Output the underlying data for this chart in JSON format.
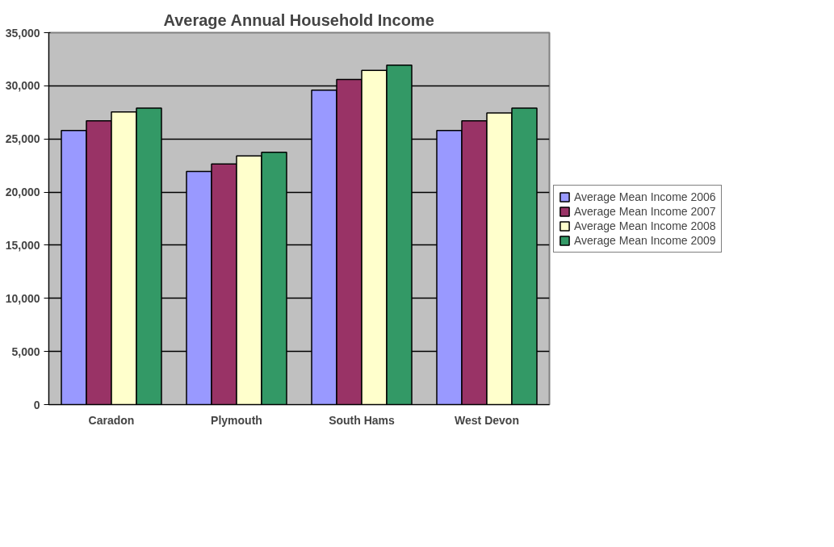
{
  "chart_data": {
    "type": "bar",
    "title": "Average Annual Household Income",
    "categories": [
      "Caradon",
      "Plymouth",
      "South Hams",
      "West Devon"
    ],
    "series": [
      {
        "name": "Average Mean Income 2006",
        "color": "#9999ff",
        "values": [
          25800,
          21950,
          29600,
          25800
        ]
      },
      {
        "name": "Average Mean Income 2007",
        "color": "#993366",
        "values": [
          26700,
          22650,
          30600,
          26700
        ]
      },
      {
        "name": "Average Mean Income 2008",
        "color": "#ffffcc",
        "values": [
          27550,
          23400,
          31450,
          27450
        ]
      },
      {
        "name": "Average Mean Income 2009",
        "color": "#339966",
        "values": [
          27900,
          23750,
          31950,
          27900
        ]
      }
    ],
    "ylim": [
      0,
      35000
    ],
    "yticks": [
      {
        "value": 0,
        "label": "0"
      },
      {
        "value": 5000,
        "label": "5,000"
      },
      {
        "value": 10000,
        "label": "10,000"
      },
      {
        "value": 15000,
        "label": "15,000"
      },
      {
        "value": 20000,
        "label": "20,000"
      },
      {
        "value": 25000,
        "label": "25,000"
      },
      {
        "value": 30000,
        "label": "30,000"
      },
      {
        "value": 35000,
        "label": "35,000"
      }
    ],
    "grid": "y",
    "legend": "right"
  }
}
